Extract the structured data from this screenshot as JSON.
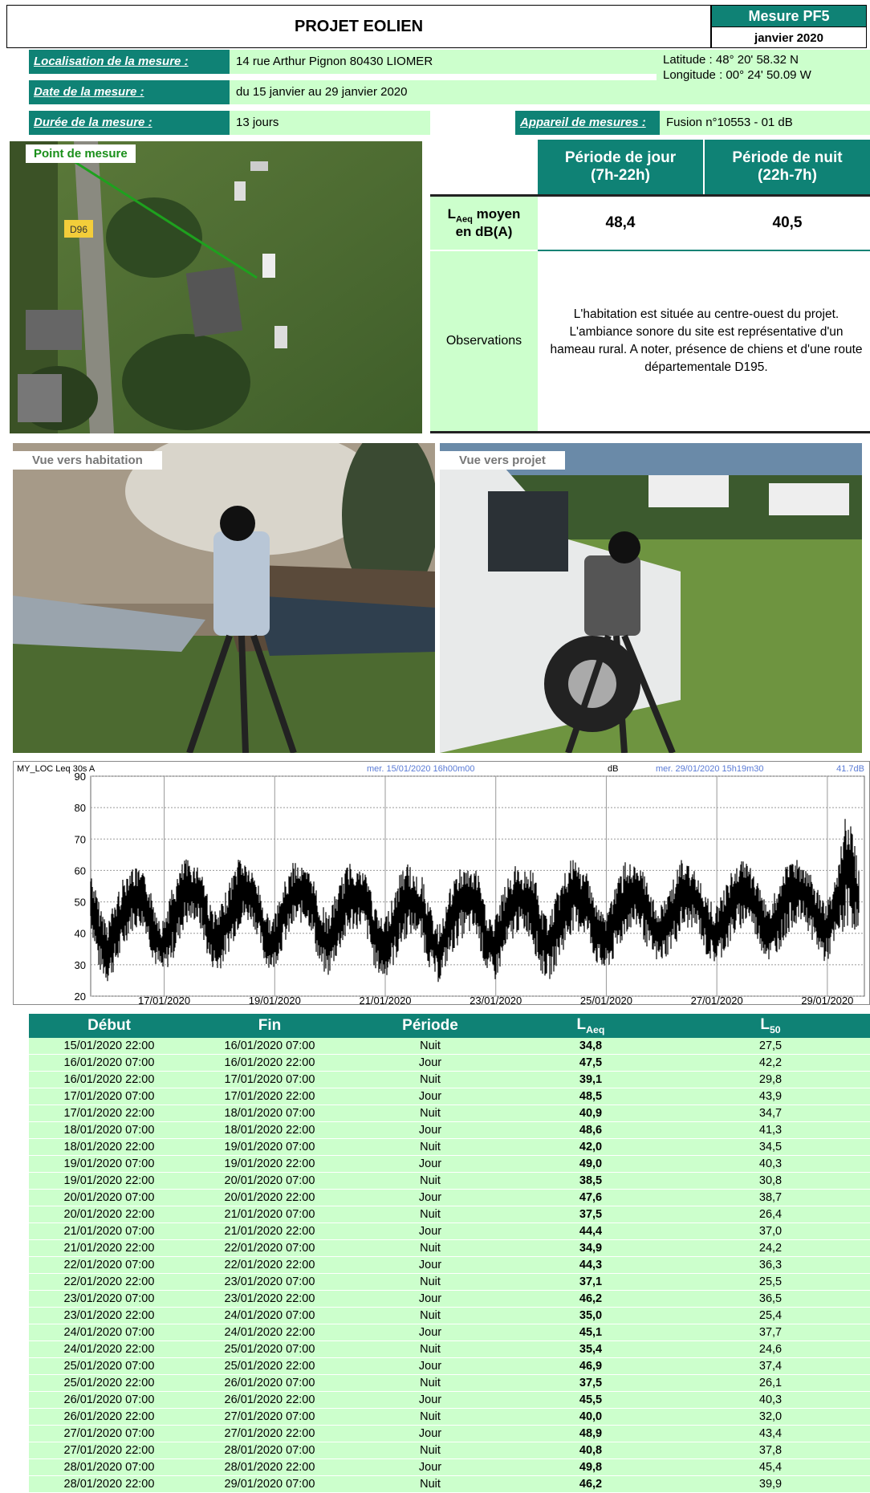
{
  "header": {
    "title": "PROJET EOLIEN",
    "mesure_label": "Mesure PF5",
    "date": "janvier 2020"
  },
  "info": {
    "localisation_label": "Localisation de la mesure :",
    "localisation_value": "14 rue Arthur Pignon 80430 LIOMER",
    "latitude": "Latitude : 48° 20' 58.32 N",
    "longitude": "Longitude : 00° 24' 50.09 W",
    "date_label": "Date de la mesure :",
    "date_value": "du 15 janvier au 29 janvier 2020",
    "duree_label": "Durée de la mesure :",
    "duree_value": "13 jours",
    "appareil_label": "Appareil de mesures :",
    "appareil_value": "Fusion n°10553 - 01 dB"
  },
  "map": {
    "point_label": "Point de mesure",
    "road_label": "D96"
  },
  "measure": {
    "jour_header": "Période de jour\n(7h-22h)",
    "jour_line1": "Période de jour",
    "jour_line2": "(7h-22h)",
    "nuit_line1": "Période de nuit",
    "nuit_line2": "(22h-7h)",
    "laeq_label_main": "L",
    "laeq_label_sub": "Aeq",
    "laeq_label_rest": " moyen",
    "laeq_label_line2": "en dB(A)",
    "jour_value": "48,4",
    "nuit_value": "40,5",
    "obs_label": "Observations",
    "obs_text": "L'habitation est située au centre-ouest du projet. L'ambiance sonore du site est représentative d'un hameau rural. A noter, présence de chiens et d'une route départementale D195."
  },
  "photos": {
    "left_caption": "Vue vers habitation",
    "right_caption": "Vue vers projet"
  },
  "chart_data": {
    "type": "line",
    "top_left": "MY_LOC   Leq 30s  A",
    "start_label": "mer. 15/01/2020 16h00m00",
    "unit": "dB",
    "end_label": "mer. 29/01/2020 15h19m30",
    "end_value": "41.7dB",
    "ylim": [
      20,
      90
    ],
    "yticks": [
      "90",
      "80",
      "70",
      "60",
      "50",
      "40",
      "30",
      "20"
    ],
    "xticks": [
      "17/01/2020",
      "19/01/2020",
      "21/01/2020",
      "23/01/2020",
      "25/01/2020",
      "27/01/2020",
      "29/01/2020"
    ],
    "series": [
      {
        "values_desc": "Leq 30s trace",
        "x_days": [
          0,
          0.15,
          0.3,
          0.5,
          0.7,
          0.9,
          1.0,
          1.15,
          1.3,
          1.5,
          1.7,
          1.9,
          2.0,
          2.15,
          2.3,
          2.5,
          2.7,
          2.9,
          3.0,
          3.15,
          3.3,
          3.5,
          3.7,
          3.9,
          4.0,
          4.15,
          4.3,
          4.5,
          4.7,
          4.9,
          5.0,
          5.15,
          5.3,
          5.5,
          5.7,
          5.9,
          6.0,
          6.15,
          6.3,
          6.5,
          6.7,
          6.9,
          7.0,
          7.15,
          7.3,
          7.5,
          7.7,
          7.9,
          8.0,
          8.15,
          8.3,
          8.5,
          8.7,
          8.9,
          9.0,
          9.15,
          9.3,
          9.5,
          9.7,
          9.9,
          10.0,
          10.15,
          10.3,
          10.5,
          10.7,
          10.9,
          11.0,
          11.15,
          11.3,
          11.5,
          11.7,
          11.9,
          12.0,
          12.15,
          12.3,
          12.5,
          12.7,
          12.9,
          13.0,
          13.15,
          13.3,
          13.5,
          13.7,
          13.9
        ],
        "low": [
          42,
          28,
          24,
          30,
          40,
          42,
          40,
          30,
          26,
          32,
          42,
          44,
          40,
          30,
          27,
          34,
          42,
          44,
          40,
          30,
          28,
          36,
          42,
          44,
          40,
          28,
          26,
          34,
          40,
          42,
          38,
          28,
          25,
          30,
          38,
          40,
          36,
          28,
          24,
          32,
          38,
          40,
          38,
          28,
          24,
          32,
          40,
          40,
          36,
          27,
          25,
          32,
          40,
          40,
          38,
          30,
          27,
          32,
          40,
          42,
          38,
          32,
          30,
          34,
          40,
          42,
          40,
          32,
          30,
          34,
          40,
          44,
          40,
          34,
          30,
          36,
          42,
          44,
          40,
          34,
          30,
          36,
          42,
          40
        ],
        "high": [
          60,
          50,
          44,
          54,
          62,
          60,
          58,
          50,
          44,
          56,
          64,
          62,
          62,
          50,
          46,
          56,
          66,
          60,
          58,
          48,
          44,
          56,
          64,
          60,
          60,
          50,
          46,
          56,
          64,
          60,
          60,
          48,
          44,
          54,
          64,
          58,
          58,
          48,
          42,
          54,
          62,
          60,
          60,
          48,
          44,
          56,
          62,
          60,
          62,
          48,
          46,
          56,
          64,
          60,
          60,
          50,
          46,
          56,
          64,
          60,
          60,
          52,
          48,
          56,
          64,
          60,
          60,
          52,
          48,
          56,
          64,
          62,
          60,
          52,
          50,
          58,
          66,
          60,
          60,
          54,
          50,
          60,
          82,
          60
        ]
      }
    ]
  },
  "table": {
    "headers": [
      "Début",
      "Fin",
      "Période",
      "L",
      "L"
    ],
    "header_subs": [
      "",
      "",
      "",
      "Aeq",
      "50"
    ],
    "rows": [
      [
        "15/01/2020 22:00",
        "16/01/2020 07:00",
        "Nuit",
        "34,8",
        "27,5"
      ],
      [
        "16/01/2020 07:00",
        "16/01/2020 22:00",
        "Jour",
        "47,5",
        "42,2"
      ],
      [
        "16/01/2020 22:00",
        "17/01/2020 07:00",
        "Nuit",
        "39,1",
        "29,8"
      ],
      [
        "17/01/2020 07:00",
        "17/01/2020 22:00",
        "Jour",
        "48,5",
        "43,9"
      ],
      [
        "17/01/2020 22:00",
        "18/01/2020 07:00",
        "Nuit",
        "40,9",
        "34,7"
      ],
      [
        "18/01/2020 07:00",
        "18/01/2020 22:00",
        "Jour",
        "48,6",
        "41,3"
      ],
      [
        "18/01/2020 22:00",
        "19/01/2020 07:00",
        "Nuit",
        "42,0",
        "34,5"
      ],
      [
        "19/01/2020 07:00",
        "19/01/2020 22:00",
        "Jour",
        "49,0",
        "40,3"
      ],
      [
        "19/01/2020 22:00",
        "20/01/2020 07:00",
        "Nuit",
        "38,5",
        "30,8"
      ],
      [
        "20/01/2020 07:00",
        "20/01/2020 22:00",
        "Jour",
        "47,6",
        "38,7"
      ],
      [
        "20/01/2020 22:00",
        "21/01/2020 07:00",
        "Nuit",
        "37,5",
        "26,4"
      ],
      [
        "21/01/2020 07:00",
        "21/01/2020 22:00",
        "Jour",
        "44,4",
        "37,0"
      ],
      [
        "21/01/2020 22:00",
        "22/01/2020 07:00",
        "Nuit",
        "34,9",
        "24,2"
      ],
      [
        "22/01/2020 07:00",
        "22/01/2020 22:00",
        "Jour",
        "44,3",
        "36,3"
      ],
      [
        "22/01/2020 22:00",
        "23/01/2020 07:00",
        "Nuit",
        "37,1",
        "25,5"
      ],
      [
        "23/01/2020 07:00",
        "23/01/2020 22:00",
        "Jour",
        "46,2",
        "36,5"
      ],
      [
        "23/01/2020 22:00",
        "24/01/2020 07:00",
        "Nuit",
        "35,0",
        "25,4"
      ],
      [
        "24/01/2020 07:00",
        "24/01/2020 22:00",
        "Jour",
        "45,1",
        "37,7"
      ],
      [
        "24/01/2020 22:00",
        "25/01/2020 07:00",
        "Nuit",
        "35,4",
        "24,6"
      ],
      [
        "25/01/2020 07:00",
        "25/01/2020 22:00",
        "Jour",
        "46,9",
        "37,4"
      ],
      [
        "25/01/2020 22:00",
        "26/01/2020 07:00",
        "Nuit",
        "37,5",
        "26,1"
      ],
      [
        "26/01/2020 07:00",
        "26/01/2020 22:00",
        "Jour",
        "45,5",
        "40,3"
      ],
      [
        "26/01/2020 22:00",
        "27/01/2020 07:00",
        "Nuit",
        "40,0",
        "32,0"
      ],
      [
        "27/01/2020 07:00",
        "27/01/2020 22:00",
        "Jour",
        "48,9",
        "43,4"
      ],
      [
        "27/01/2020 22:00",
        "28/01/2020 07:00",
        "Nuit",
        "40,8",
        "37,8"
      ],
      [
        "28/01/2020 07:00",
        "28/01/2020 22:00",
        "Jour",
        "49,8",
        "45,4"
      ],
      [
        "28/01/2020 22:00",
        "29/01/2020 07:00",
        "Nuit",
        "46,2",
        "39,9"
      ]
    ]
  }
}
